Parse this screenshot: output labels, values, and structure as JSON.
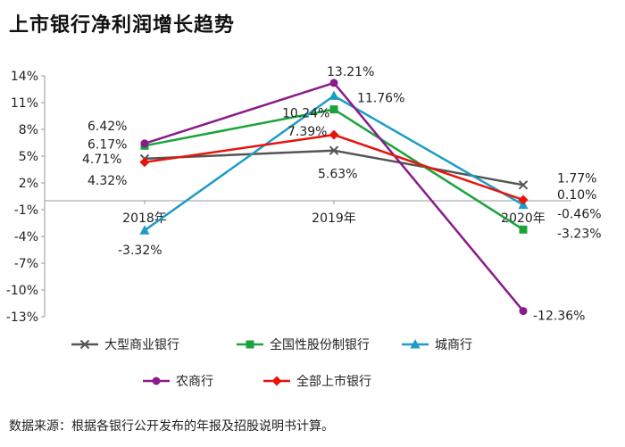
{
  "title": "上市银行净利润增长趋势",
  "source_note": "数据来源：根据各银行公开发布的年报及招股说明书计算。",
  "chart_data": {
    "type": "line",
    "categories": [
      "2018年",
      "2019年",
      "2020年"
    ],
    "y_ticks": [
      "14%",
      "11%",
      "8%",
      "5%",
      "2%",
      "-1%",
      "-4%",
      "-7%",
      "-10%",
      "-13%"
    ],
    "ylim": [
      -13,
      14
    ],
    "y_unit": "%",
    "grid": false,
    "legend_position": "bottom",
    "series": [
      {
        "name": "大型商业银行",
        "values": [
          4.71,
          5.63,
          1.77
        ],
        "labels": [
          "4.71%",
          "5.63%",
          "1.77%"
        ],
        "color": "#555555",
        "marker": "x"
      },
      {
        "name": "全国性股份制银行",
        "values": [
          6.17,
          10.24,
          -3.23
        ],
        "labels": [
          "6.17%",
          "10.24%",
          "-3.23%"
        ],
        "color": "#1aa33a",
        "marker": "square"
      },
      {
        "name": "城商行",
        "values": [
          -3.32,
          11.76,
          -0.46
        ],
        "labels": [
          "-3.32%",
          "11.76%",
          "-0.46%"
        ],
        "color": "#1c9cc6",
        "marker": "triangle"
      },
      {
        "name": "农商行",
        "values": [
          6.42,
          13.21,
          -12.36
        ],
        "labels": [
          "6.42%",
          "13.21%",
          "-12.36%"
        ],
        "color": "#8b1a8b",
        "marker": "circle"
      },
      {
        "name": "全部上市银行",
        "values": [
          4.32,
          7.39,
          0.1
        ],
        "labels": [
          "4.32%",
          "7.39%",
          "0.10%"
        ],
        "color": "#e8140c",
        "marker": "diamond"
      }
    ]
  }
}
